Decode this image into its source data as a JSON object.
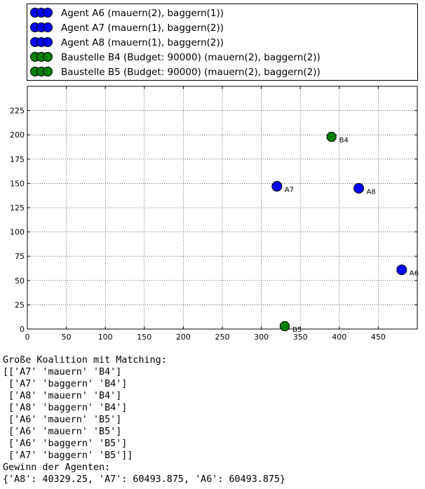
{
  "legend": [
    {
      "label": "Agent A6 (mauern(2), baggern(1))",
      "color": "#0000ff"
    },
    {
      "label": "Agent A7 (mauern(1), baggern(2))",
      "color": "#0000ff"
    },
    {
      "label": "Agent A8 (mauern(1), baggern(2))",
      "color": "#0000ff"
    },
    {
      "label": "Baustelle B4 (Budget: 90000) (mauern(2), baggern(2))",
      "color": "#008000"
    },
    {
      "label": "Baustelle B5 (Budget: 90000) (mauern(2), baggern(2))",
      "color": "#008000"
    }
  ],
  "chart_data": {
    "type": "scatter",
    "xlim": [
      0,
      500
    ],
    "ylim": [
      0,
      250
    ],
    "xticks": [
      0,
      50,
      100,
      150,
      200,
      250,
      300,
      350,
      400,
      450
    ],
    "yticks": [
      0,
      25,
      50,
      75,
      100,
      125,
      150,
      175,
      200,
      225
    ],
    "grid": true,
    "legend_position": "above plot",
    "series": [
      {
        "name": "Agent A6 (mauern(2), baggern(1))",
        "color": "#0000ff",
        "shape": "circle",
        "points": [
          {
            "x": 480,
            "y": 61,
            "label": "A6"
          }
        ]
      },
      {
        "name": "Agent A7 (mauern(1), baggern(2))",
        "color": "#0000ff",
        "shape": "circle",
        "points": [
          {
            "x": 320,
            "y": 147,
            "label": "A7"
          }
        ]
      },
      {
        "name": "Agent A8 (mauern(1), baggern(2))",
        "color": "#0000ff",
        "shape": "circle",
        "points": [
          {
            "x": 425,
            "y": 145,
            "label": "A8"
          }
        ]
      },
      {
        "name": "Baustelle B4 (Budget: 90000) (mauern(2), baggern(2))",
        "color": "#008000",
        "shape": "octagon",
        "points": [
          {
            "x": 390,
            "y": 198,
            "label": "B4"
          }
        ]
      },
      {
        "name": "Baustelle B5 (Budget: 90000) (mauern(2), baggern(2))",
        "color": "#008000",
        "shape": "octagon",
        "points": [
          {
            "x": 330,
            "y": 3,
            "label": "B5"
          }
        ]
      }
    ]
  },
  "console": {
    "text": "Große Koalition mit Matching:\n[['A7' 'mauern' 'B4']\n ['A7' 'baggern' 'B4']\n ['A8' 'mauern' 'B4']\n ['A8' 'baggern' 'B4']\n ['A6' 'mauern' 'B5']\n ['A6' 'mauern' 'B5']\n ['A6' 'baggern' 'B5']\n ['A7' 'baggern' 'B5']]\nGewinn der Agenten:\n{'A8': 40329.25, 'A7': 60493.875, 'A6': 60493.875}"
  }
}
